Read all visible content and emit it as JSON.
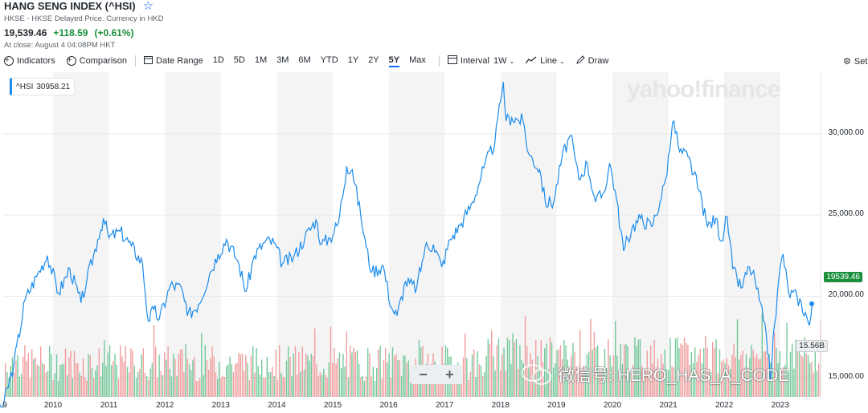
{
  "header": {
    "title": "HANG SENG INDEX (^HSI)",
    "subtitle": "HKSE - HKSE Delayed Price. Currency in HKD",
    "price": "19,539.46",
    "change": "+118.59",
    "change_pct": "(+0.61%)",
    "close_text": "At close: August 4 04:08PM HKT"
  },
  "toolbar": {
    "indicators": "Indicators",
    "comparison": "Comparison",
    "date_range": "Date Range",
    "ranges": [
      "1D",
      "5D",
      "1M",
      "3M",
      "6M",
      "YTD",
      "1Y",
      "2Y",
      "5Y",
      "Max"
    ],
    "active_range": "5Y",
    "interval_label": "Interval",
    "interval_value": "1W",
    "line_label": "Line",
    "draw_label": "Draw",
    "settings_label": "Set"
  },
  "legend": {
    "symbol": "^HSI",
    "value": "30958.21"
  },
  "watermark": "yahoo!finance",
  "overlay_watermark": "微信号: HERO_HAS_A_CODE",
  "zoom": {
    "minus": "−",
    "plus": "+"
  },
  "colors": {
    "line": "#1a8cec",
    "up": "#5cc08a",
    "down": "#f08d8d",
    "band": "#f4f4f5",
    "last_tag": "#1c8f3c"
  },
  "chart_data": {
    "type": "line",
    "title": "",
    "xlabel": "",
    "ylabel": "",
    "x_tick_labels": [
      "9",
      "2010",
      "2011",
      "2012",
      "2013",
      "2014",
      "2015",
      "2016",
      "2017",
      "2018",
      "2019",
      "2020",
      "2021",
      "2022",
      "2023"
    ],
    "y_tick_labels": [
      "30,000.00",
      "25,000.00",
      "20,000.00",
      "15,000.00"
    ],
    "ylim": [
      13800,
      33800
    ],
    "last_value_label": "19539.46",
    "volume_label": "15.56B",
    "series": [
      {
        "values": [
          [
            2008.85,
            14000
          ],
          [
            2009.1,
            13200
          ],
          [
            2009.3,
            15800
          ],
          [
            2009.5,
            19800
          ],
          [
            2009.7,
            21200
          ],
          [
            2009.9,
            22500
          ],
          [
            2010.1,
            20200
          ],
          [
            2010.3,
            21700
          ],
          [
            2010.5,
            19600
          ],
          [
            2010.6,
            20900
          ],
          [
            2010.8,
            23500
          ],
          [
            2010.9,
            24800
          ],
          [
            2011.0,
            23600
          ],
          [
            2011.2,
            24000
          ],
          [
            2011.4,
            23100
          ],
          [
            2011.6,
            22000
          ],
          [
            2011.7,
            18500
          ],
          [
            2011.8,
            19200
          ],
          [
            2011.9,
            18600
          ],
          [
            2012.1,
            20700
          ],
          [
            2012.3,
            20500
          ],
          [
            2012.4,
            18800
          ],
          [
            2012.6,
            19500
          ],
          [
            2012.8,
            21400
          ],
          [
            2012.95,
            22600
          ],
          [
            2013.1,
            23500
          ],
          [
            2013.3,
            22200
          ],
          [
            2013.45,
            20300
          ],
          [
            2013.6,
            22500
          ],
          [
            2013.8,
            23400
          ],
          [
            2013.95,
            23300
          ],
          [
            2014.1,
            22000
          ],
          [
            2014.3,
            22400
          ],
          [
            2014.5,
            23600
          ],
          [
            2014.7,
            24700
          ],
          [
            2014.8,
            23200
          ],
          [
            2014.95,
            23600
          ],
          [
            2015.1,
            24500
          ],
          [
            2015.25,
            28000
          ],
          [
            2015.35,
            27800
          ],
          [
            2015.5,
            25000
          ],
          [
            2015.6,
            23000
          ],
          [
            2015.7,
            21500
          ],
          [
            2015.9,
            21900
          ],
          [
            2016.05,
            19300
          ],
          [
            2016.15,
            18800
          ],
          [
            2016.3,
            20900
          ],
          [
            2016.5,
            20500
          ],
          [
            2016.65,
            23000
          ],
          [
            2016.8,
            23200
          ],
          [
            2016.95,
            21800
          ],
          [
            2017.1,
            23500
          ],
          [
            2017.3,
            24500
          ],
          [
            2017.5,
            25800
          ],
          [
            2017.7,
            27900
          ],
          [
            2017.9,
            29500
          ],
          [
            2018.0,
            32000
          ],
          [
            2018.05,
            33200
          ],
          [
            2018.1,
            30800
          ],
          [
            2018.2,
            31000
          ],
          [
            2018.4,
            30800
          ],
          [
            2018.5,
            28800
          ],
          [
            2018.7,
            27800
          ],
          [
            2018.8,
            25800
          ],
          [
            2018.95,
            25800
          ],
          [
            2019.1,
            28600
          ],
          [
            2019.25,
            29900
          ],
          [
            2019.4,
            27200
          ],
          [
            2019.55,
            28200
          ],
          [
            2019.7,
            25800
          ],
          [
            2019.85,
            26400
          ],
          [
            2019.95,
            28200
          ],
          [
            2020.05,
            26500
          ],
          [
            2020.2,
            22800
          ],
          [
            2020.35,
            24200
          ],
          [
            2020.5,
            24800
          ],
          [
            2020.7,
            24300
          ],
          [
            2020.85,
            25800
          ],
          [
            2020.95,
            27200
          ],
          [
            2021.05,
            29800
          ],
          [
            2021.1,
            30800
          ],
          [
            2021.2,
            28900
          ],
          [
            2021.35,
            28600
          ],
          [
            2021.55,
            26500
          ],
          [
            2021.7,
            24300
          ],
          [
            2021.85,
            24800
          ],
          [
            2021.95,
            23400
          ],
          [
            2022.05,
            24900
          ],
          [
            2022.15,
            21700
          ],
          [
            2022.3,
            20500
          ],
          [
            2022.45,
            21800
          ],
          [
            2022.55,
            21000
          ],
          [
            2022.7,
            18500
          ],
          [
            2022.8,
            16200
          ],
          [
            2022.82,
            14800
          ],
          [
            2022.9,
            18300
          ],
          [
            2023.0,
            21800
          ],
          [
            2023.05,
            22600
          ],
          [
            2023.15,
            20200
          ],
          [
            2023.3,
            20000
          ],
          [
            2023.45,
            19000
          ],
          [
            2023.52,
            18200
          ],
          [
            2023.59,
            19539.46
          ]
        ]
      }
    ]
  }
}
